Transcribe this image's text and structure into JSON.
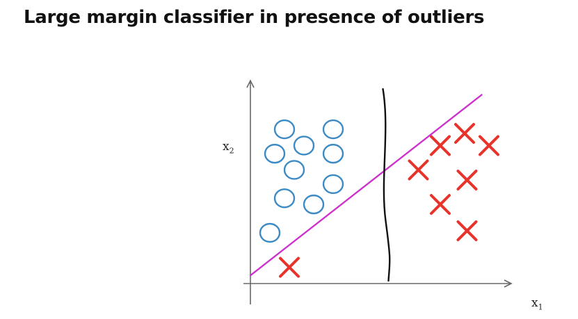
{
  "slide": {
    "title": "Large margin classifier in presence of outliers"
  },
  "axes": {
    "x_label_var": "x",
    "x_label_sub": "1",
    "y_label_var": "x",
    "y_label_sub": "2"
  },
  "colors": {
    "positive_marker": "#e8332a",
    "negative_marker": "#3d8bc4",
    "boundary_outlier_fit": "#cc33cc",
    "boundary_large_margin": "#111111",
    "axis": "#666666"
  },
  "chart_data": {
    "type": "scatter",
    "series": [
      {
        "marker": "circle",
        "points": [
          [
            1.4,
            7.6
          ],
          [
            3.4,
            7.6
          ],
          [
            2.2,
            6.8
          ],
          [
            1.0,
            6.4
          ],
          [
            3.4,
            6.4
          ],
          [
            1.8,
            5.6
          ],
          [
            3.4,
            4.9
          ],
          [
            1.4,
            4.2
          ],
          [
            2.6,
            3.9
          ],
          [
            0.8,
            2.5
          ]
        ]
      },
      {
        "marker": "cross",
        "points": [
          [
            8.8,
            7.4
          ],
          [
            7.8,
            6.8
          ],
          [
            9.8,
            6.8
          ],
          [
            6.9,
            5.6
          ],
          [
            8.9,
            5.1
          ],
          [
            7.8,
            3.9
          ],
          [
            8.9,
            2.6
          ],
          [
            1.6,
            0.8
          ]
        ]
      }
    ],
    "lines": [
      {
        "kind": "straight",
        "from": [
          0,
          0.4
        ],
        "to": [
          9.5,
          9.3
        ]
      },
      {
        "kind": "vertical",
        "x": 5.5
      }
    ],
    "xlim": [
      0,
      10
    ],
    "ylim": [
      0,
      10
    ]
  }
}
